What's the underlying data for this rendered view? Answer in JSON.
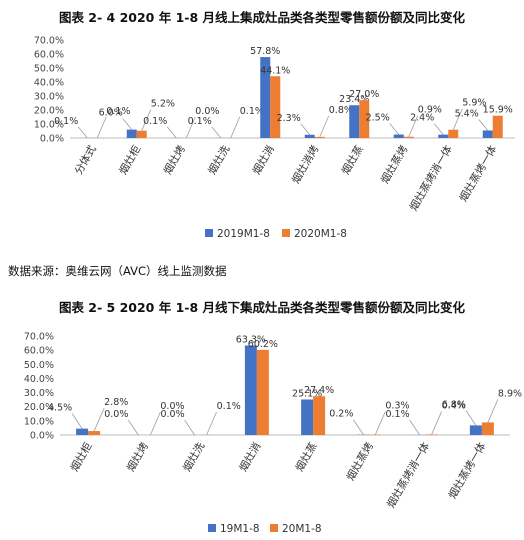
{
  "chart_data": [
    {
      "type": "bar",
      "title": "图表 2- 4 2020 年 1-8 月线上集成灶品类各类型零售额份额及同比变化",
      "categories": [
        "分体式",
        "烟灶柜",
        "烟灶烤",
        "烟灶洗",
        "烟灶消",
        "烟灶消烤",
        "烟灶蒸",
        "烟灶蒸烤",
        "烟灶蒸烤消一体",
        "烟灶蒸烤一体"
      ],
      "series": [
        {
          "name": "2019M1-8",
          "values": [
            0.1,
            6.0,
            0.1,
            0.1,
            57.8,
            2.3,
            23.4,
            2.5,
            2.4,
            5.4
          ],
          "color": "#4472c4"
        },
        {
          "name": "2020M1-8",
          "values": [
            0.1,
            5.2,
            0.0,
            0.1,
            44.1,
            0.8,
            27.0,
            0.9,
            5.9,
            15.9
          ],
          "color": "#ed7d31"
        }
      ],
      "yticks": [
        "0.0%",
        "10.0%",
        "20.0%",
        "30.0%",
        "40.0%",
        "50.0%",
        "60.0%",
        "70.0%"
      ],
      "ylim": [
        0,
        70
      ],
      "value_labels": [
        [
          "0.1%",
          "6.0%",
          "0.1%",
          "0.1%",
          "57.8%",
          "2.3%",
          "23.4%",
          "2.5%",
          "2.4%",
          "5.4%"
        ],
        [
          "0.1%",
          "5.2%",
          "0.0%",
          "0.1%",
          "44.1%",
          "0.8%",
          "27.0%",
          "0.9%",
          "5.9%",
          "15.9%"
        ]
      ],
      "legend": "bottom"
    },
    {
      "type": "bar",
      "title": "图表 2- 5 2020 年 1-8 月线下集成灶品类各类型零售额份额及同比变化",
      "categories": [
        "烟灶柜",
        "烟灶烤",
        "烟灶洗",
        "烟灶消",
        "烟灶蒸",
        "烟灶蒸烤",
        "烟灶蒸烤消一体",
        "烟灶蒸烤一体"
      ],
      "series": [
        {
          "name": "19M1-8",
          "values": [
            4.5,
            0.0,
            0.0,
            63.3,
            25.1,
            0.2,
            0.1,
            6.8
          ],
          "color": "#4472c4"
        },
        {
          "name": "20M1-8",
          "values": [
            2.8,
            0.0,
            0.1,
            60.2,
            27.4,
            0.3,
            0.4,
            8.9
          ],
          "color": "#ed7d31"
        }
      ],
      "yticks": [
        "0.0%",
        "10.0%",
        "20.0%",
        "30.0%",
        "40.0%",
        "50.0%",
        "60.0%",
        "70.0%"
      ],
      "ylim": [
        0,
        70
      ],
      "value_labels": [
        [
          "4.5%",
          "0.0%",
          "0.0%",
          "63.3%",
          "25.1%",
          "0.2%",
          "0.1%",
          "6.8%"
        ],
        [
          "2.8%",
          "0.0%",
          "0.1%",
          "60.2%",
          "27.4%",
          "0.3%",
          "0.4%",
          "8.9%"
        ]
      ],
      "legend": "bottom"
    }
  ],
  "source_text": "数据来源：奥维云网（AVC）线上监测数据"
}
